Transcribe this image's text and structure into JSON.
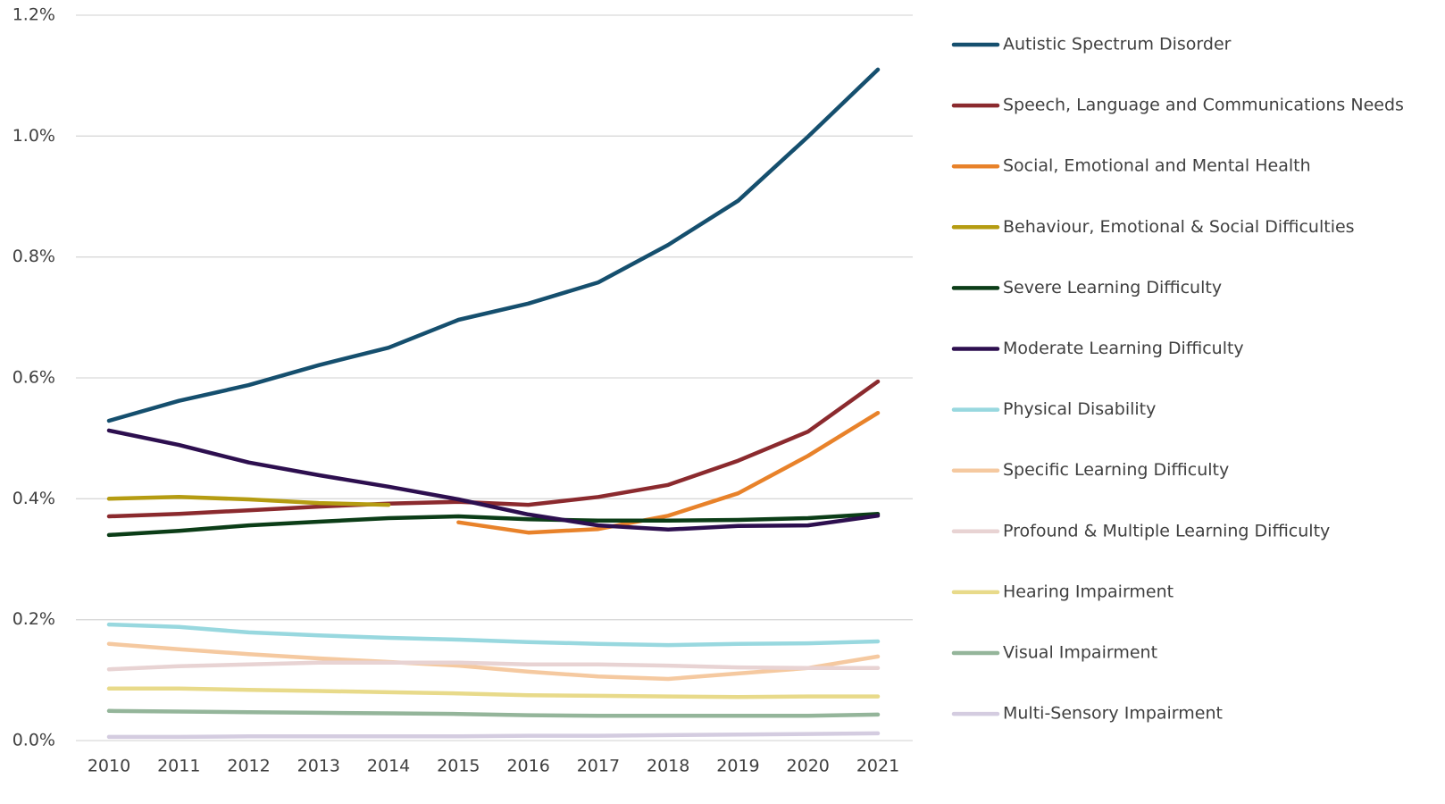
{
  "chart_data": {
    "type": "line",
    "categories": [
      "2010",
      "2011",
      "2012",
      "2013",
      "2014",
      "2015",
      "2016",
      "2017",
      "2018",
      "2019",
      "2020",
      "2021"
    ],
    "ylim": [
      0,
      1.2
    ],
    "yticks": [
      {
        "value": 0,
        "label": "0.0%"
      },
      {
        "value": 0.2,
        "label": "0.2%"
      },
      {
        "value": 0.4,
        "label": "0.4%"
      },
      {
        "value": 0.6,
        "label": "0.6%"
      },
      {
        "value": 0.8,
        "label": "0.8%"
      },
      {
        "value": 1.0,
        "label": "1.0%"
      },
      {
        "value": 1.2,
        "label": "1.2%"
      }
    ],
    "grid": true,
    "legend": "right",
    "series": [
      {
        "name": "Autistic Spectrum Disorder",
        "color": "#154f6e",
        "values": [
          0.529,
          0.562,
          0.588,
          0.621,
          0.65,
          0.696,
          0.723,
          0.758,
          0.82,
          0.893,
          0.999,
          1.11
        ]
      },
      {
        "name": "Speech, Language and Communications Needs",
        "color": "#8b2a2e",
        "values": [
          0.371,
          0.375,
          0.381,
          0.387,
          0.392,
          0.395,
          0.39,
          0.403,
          0.423,
          0.463,
          0.511,
          0.594
        ]
      },
      {
        "name": "Social, Emotional and Mental Health",
        "color": "#e8822a",
        "values": [
          null,
          null,
          null,
          null,
          null,
          0.361,
          0.344,
          0.35,
          0.372,
          0.409,
          0.471,
          0.542
        ]
      },
      {
        "name": "Behaviour, Emotional & Social Difficulties",
        "color": "#b59c12",
        "values": [
          0.4,
          0.403,
          0.399,
          0.393,
          0.39,
          null,
          null,
          null,
          null,
          null,
          null,
          null
        ]
      },
      {
        "name": "Severe Learning Difficulty",
        "color": "#0b3d17",
        "values": [
          0.34,
          0.347,
          0.356,
          0.362,
          0.368,
          0.371,
          0.366,
          0.364,
          0.364,
          0.365,
          0.368,
          0.375
        ]
      },
      {
        "name": "Moderate Learning Difficulty",
        "color": "#2d0f4f",
        "values": [
          0.513,
          0.489,
          0.46,
          0.439,
          0.42,
          0.399,
          0.374,
          0.356,
          0.349,
          0.355,
          0.356,
          0.372
        ]
      },
      {
        "name": "Physical Disability",
        "color": "#98d8df",
        "values": [
          0.192,
          0.188,
          0.179,
          0.174,
          0.17,
          0.167,
          0.163,
          0.16,
          0.158,
          0.16,
          0.161,
          0.164
        ]
      },
      {
        "name": "Specific Learning Difficulty",
        "color": "#f5c9a0",
        "values": [
          0.16,
          0.151,
          0.143,
          0.136,
          0.13,
          0.124,
          0.114,
          0.106,
          0.102,
          0.111,
          0.12,
          0.139
        ]
      },
      {
        "name": "Profound & Multiple Learning Difficulty",
        "color": "#e8d3d3",
        "values": [
          0.118,
          0.123,
          0.126,
          0.129,
          0.129,
          0.129,
          0.126,
          0.126,
          0.124,
          0.121,
          0.12,
          0.12
        ]
      },
      {
        "name": "Hearing Impairment",
        "color": "#e8da8a",
        "values": [
          0.086,
          0.086,
          0.084,
          0.082,
          0.08,
          0.078,
          0.075,
          0.074,
          0.073,
          0.072,
          0.073,
          0.073
        ]
      },
      {
        "name": "Visual Impairment",
        "color": "#94b59a",
        "values": [
          0.049,
          0.048,
          0.047,
          0.046,
          0.045,
          0.044,
          0.042,
          0.041,
          0.041,
          0.041,
          0.041,
          0.043
        ]
      },
      {
        "name": "Multi-Sensory Impairment",
        "color": "#d4cce0",
        "values": [
          0.006,
          0.006,
          0.007,
          0.007,
          0.007,
          0.007,
          0.008,
          0.008,
          0.009,
          0.01,
          0.011,
          0.012
        ]
      }
    ]
  }
}
